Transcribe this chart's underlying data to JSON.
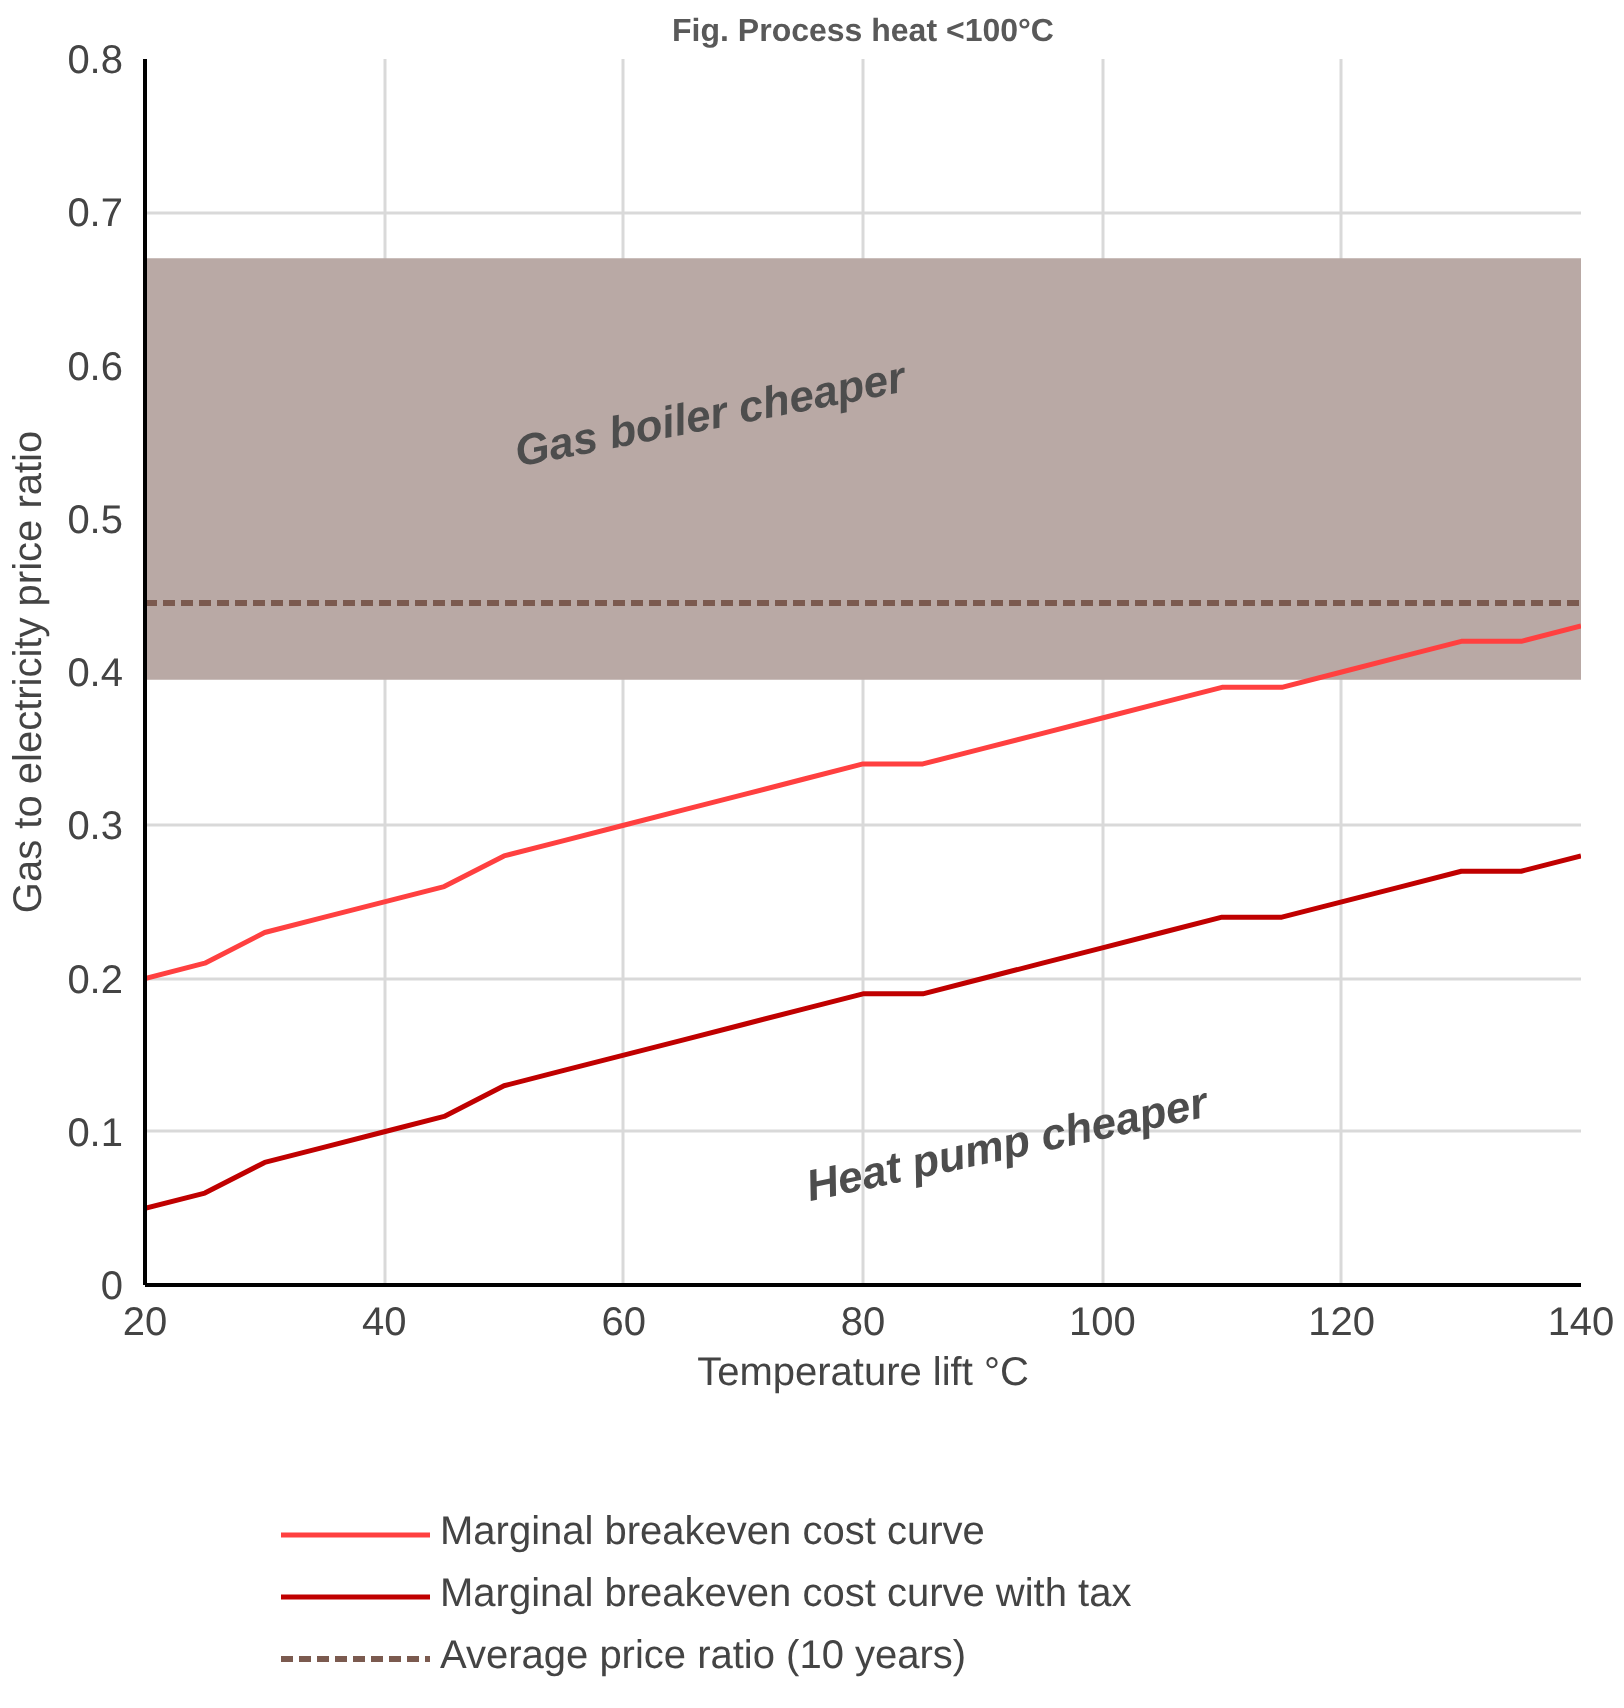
{
  "chart_data": {
    "type": "line",
    "title": "Fig. Process heat <100°C",
    "xlabel": "Temperature lift °C",
    "ylabel": "Gas to electricity price ratio",
    "x": [
      20,
      25,
      30,
      35,
      40,
      45,
      50,
      55,
      60,
      65,
      70,
      75,
      80,
      85,
      90,
      95,
      100,
      105,
      110,
      115,
      120,
      125,
      130,
      135,
      140
    ],
    "series": [
      {
        "name": "Marginal breakeven cost curve",
        "color": "#ff4040",
        "values": [
          0.2,
          0.21,
          0.23,
          0.24,
          0.25,
          0.26,
          0.28,
          0.29,
          0.3,
          0.31,
          0.32,
          0.33,
          0.34,
          0.34,
          0.35,
          0.36,
          0.37,
          0.38,
          0.39,
          0.39,
          0.4,
          0.41,
          0.42,
          0.42,
          0.43
        ]
      },
      {
        "name": "Marginal breakeven cost curve with tax",
        "color": "#c00000",
        "values": [
          0.05,
          0.06,
          0.08,
          0.09,
          0.1,
          0.11,
          0.13,
          0.14,
          0.15,
          0.16,
          0.17,
          0.18,
          0.19,
          0.19,
          0.2,
          0.21,
          0.22,
          0.23,
          0.24,
          0.24,
          0.25,
          0.26,
          0.27,
          0.27,
          0.28
        ]
      }
    ],
    "ref_lines": [
      {
        "axis": "y",
        "value": 0.445,
        "label": "Average price ratio (10 years)",
        "color": "#7b5a4f",
        "line_style": "dashed"
      }
    ],
    "bands": [
      {
        "axis": "y",
        "from": 0.395,
        "to": 0.67,
        "label": "Gas boiler cheaper",
        "color": "#b9a9a5"
      }
    ],
    "annotations": [
      "Heat pump cheaper"
    ],
    "xlim": [
      20,
      140
    ],
    "xticks": [
      20,
      40,
      60,
      80,
      100,
      120,
      140
    ],
    "ylim": [
      0,
      0.8
    ],
    "yticks": [
      {
        "value": 0,
        "label": "0"
      },
      0.1,
      0.2,
      0.3,
      0.4,
      0.5,
      0.6,
      0.7,
      0.8
    ],
    "grid": true,
    "legend": "bottom",
    "line_style": "solid",
    "marker": "none"
  }
}
